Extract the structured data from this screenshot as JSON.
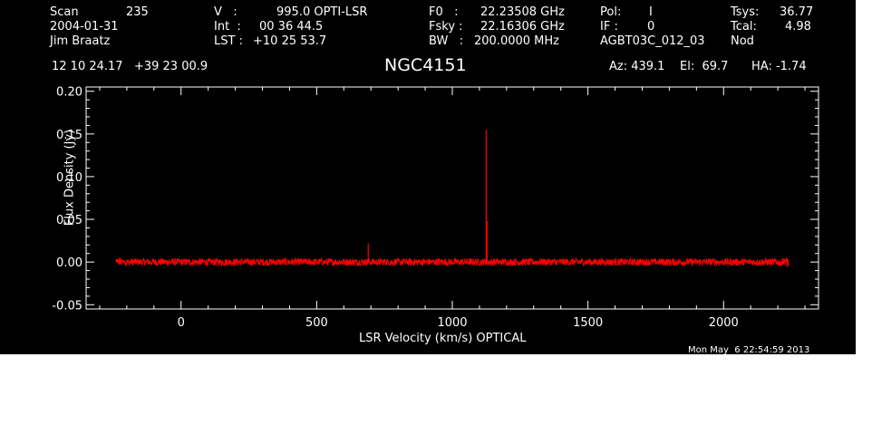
{
  "header": {
    "scan_label": "Scan",
    "scan_value": "235",
    "date": "2004-01-31",
    "observer": "Jim Braatz",
    "v_label": "V   :",
    "v_value": "995.0 OPTI-LSR",
    "int_label": "Int  :",
    "int_value": "00 36 44.5",
    "lst_label": "LST :",
    "lst_value": "+10 25 53.7",
    "f0_label": "F0   :",
    "f0_value": "22.23508 GHz",
    "fsky_label": "Fsky :",
    "fsky_value": "22.16306 GHz",
    "bw_label": "BW   :",
    "bw_value": "200.0000 MHz",
    "pol_label": "Pol:",
    "pol_value": "I",
    "if_label": "IF :",
    "if_value": "0",
    "project": "AGBT03C_012_03",
    "tsys_label": "Tsys:",
    "tsys_value": "36.77",
    "tcal_label": "Tcal:",
    "tcal_value": "4.98",
    "mode": "Nod",
    "coords": "12 10 24.17   +39 23 00.9",
    "source": "NGC4151",
    "az": "Az: 439.1",
    "el": "El:  69.7",
    "ha": "HA: -1.74",
    "timestamp": "Mon May  6 22:54:59 2013"
  },
  "colors": {
    "background": "#000000",
    "axes": "#ffffff",
    "trace": "#ff0000"
  },
  "chart_data": {
    "type": "line",
    "title": "NGC4151",
    "xlabel": "LSR Velocity (km/s) OPTICAL",
    "ylabel": "Flux Density (Jy)",
    "xlim": [
      -350,
      2350
    ],
    "ylim": [
      -0.055,
      0.205
    ],
    "x_ticks": [
      0,
      500,
      1000,
      1500,
      2000
    ],
    "x_tick_labels": [
      "0",
      "500",
      "1000",
      "1500",
      "2000"
    ],
    "y_ticks": [
      -0.05,
      0.0,
      0.05,
      0.1,
      0.15,
      0.2
    ],
    "y_tick_labels": [
      "-0.05",
      "0.00",
      "0.05",
      "0.10",
      "0.15",
      "0.20"
    ],
    "grid": false,
    "series": [
      {
        "line_range": [
          -240,
          2240
        ],
        "baseline": 0.0,
        "noise_rms": 0.003,
        "features": [
          {
            "x": 690,
            "y": 0.022
          },
          {
            "x": 1125,
            "y": 0.155
          },
          {
            "x": 1128,
            "y": 0.048
          }
        ]
      }
    ]
  }
}
